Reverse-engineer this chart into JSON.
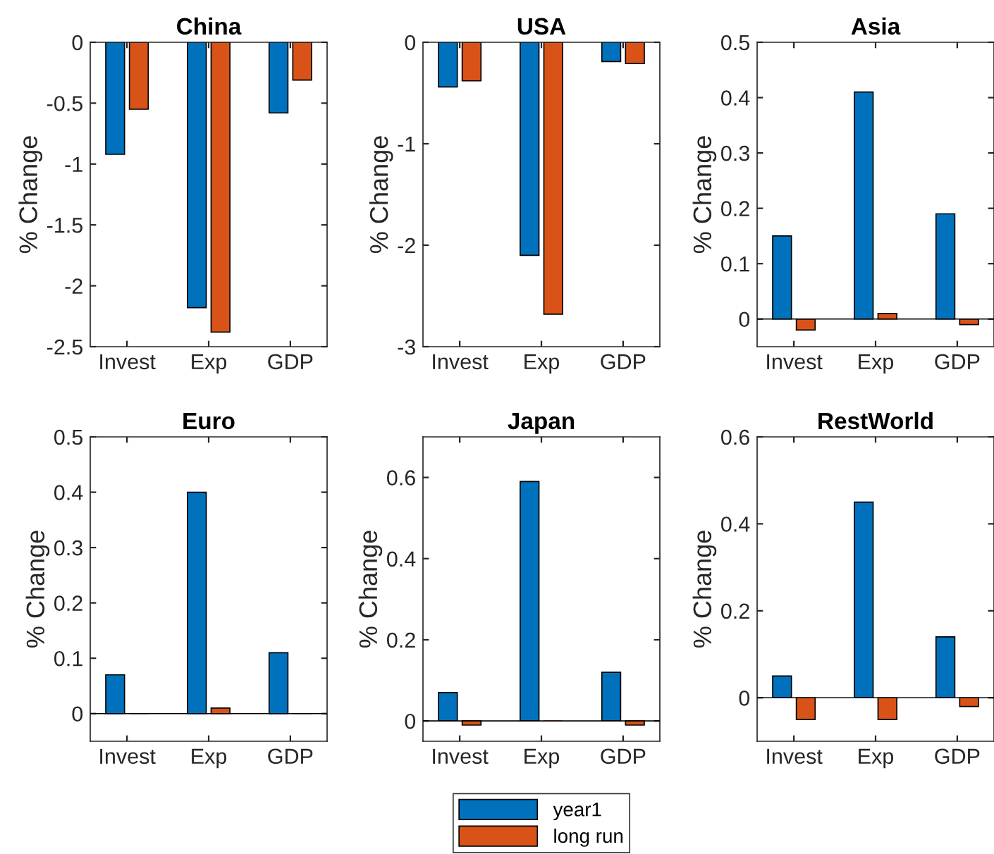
{
  "chart_data": [
    {
      "type": "bar",
      "title": "China",
      "ylabel": "% Change",
      "categories": [
        "Invest",
        "Exp",
        "GDP"
      ],
      "ylim": [
        -2.5,
        0
      ],
      "yticks": [
        -2.5,
        -2,
        -1.5,
        -1,
        -0.5,
        0
      ],
      "series": [
        {
          "color": "#0072bd",
          "values": [
            -0.92,
            -2.18,
            -0.58
          ]
        },
        {
          "color": "#d95319",
          "values": [
            -0.55,
            -2.38,
            -0.31
          ]
        }
      ]
    },
    {
      "type": "bar",
      "title": "USA",
      "ylabel": "% Change",
      "categories": [
        "Invest",
        "Exp",
        "GDP"
      ],
      "ylim": [
        -3,
        0
      ],
      "yticks": [
        -3,
        -2,
        -1,
        0
      ],
      "series": [
        {
          "color": "#0072bd",
          "values": [
            -0.44,
            -2.1,
            -0.19
          ]
        },
        {
          "color": "#d95319",
          "values": [
            -0.38,
            -2.68,
            -0.21
          ]
        }
      ]
    },
    {
      "type": "bar",
      "title": "Asia",
      "ylabel": "% Change",
      "categories": [
        "Invest",
        "Exp",
        "GDP"
      ],
      "ylim": [
        -0.05,
        0.5
      ],
      "yticks": [
        0,
        0.1,
        0.2,
        0.3,
        0.4,
        0.5
      ],
      "series": [
        {
          "color": "#0072bd",
          "values": [
            0.15,
            0.41,
            0.19
          ]
        },
        {
          "color": "#d95319",
          "values": [
            -0.02,
            0.01,
            -0.01
          ]
        }
      ]
    },
    {
      "type": "bar",
      "title": "Euro",
      "ylabel": "% Change",
      "categories": [
        "Invest",
        "Exp",
        "GDP"
      ],
      "ylim": [
        -0.05,
        0.5
      ],
      "yticks": [
        0,
        0.1,
        0.2,
        0.3,
        0.4,
        0.5
      ],
      "series": [
        {
          "color": "#0072bd",
          "values": [
            0.07,
            0.4,
            0.11
          ]
        },
        {
          "color": "#d95319",
          "values": [
            0,
            0.01,
            0
          ]
        }
      ]
    },
    {
      "type": "bar",
      "title": "Japan",
      "ylabel": "% Change",
      "categories": [
        "Invest",
        "Exp",
        "GDP"
      ],
      "ylim": [
        -0.05,
        0.7
      ],
      "yticks": [
        0,
        0.2,
        0.4,
        0.6
      ],
      "legend": "bottom",
      "series": [
        {
          "name": "year1",
          "color": "#0072bd",
          "values": [
            0.07,
            0.59,
            0.12
          ]
        },
        {
          "name": "long run",
          "color": "#d95319",
          "values": [
            -0.01,
            0,
            -0.01
          ]
        }
      ]
    },
    {
      "type": "bar",
      "title": "RestWorld",
      "ylabel": "% Change",
      "categories": [
        "Invest",
        "Exp",
        "GDP"
      ],
      "ylim": [
        -0.1,
        0.6
      ],
      "yticks": [
        0,
        0.2,
        0.4,
        0.6
      ],
      "series": [
        {
          "color": "#0072bd",
          "values": [
            0.05,
            0.45,
            0.14
          ]
        },
        {
          "color": "#d95319",
          "values": [
            -0.05,
            -0.05,
            -0.02
          ]
        }
      ]
    }
  ]
}
